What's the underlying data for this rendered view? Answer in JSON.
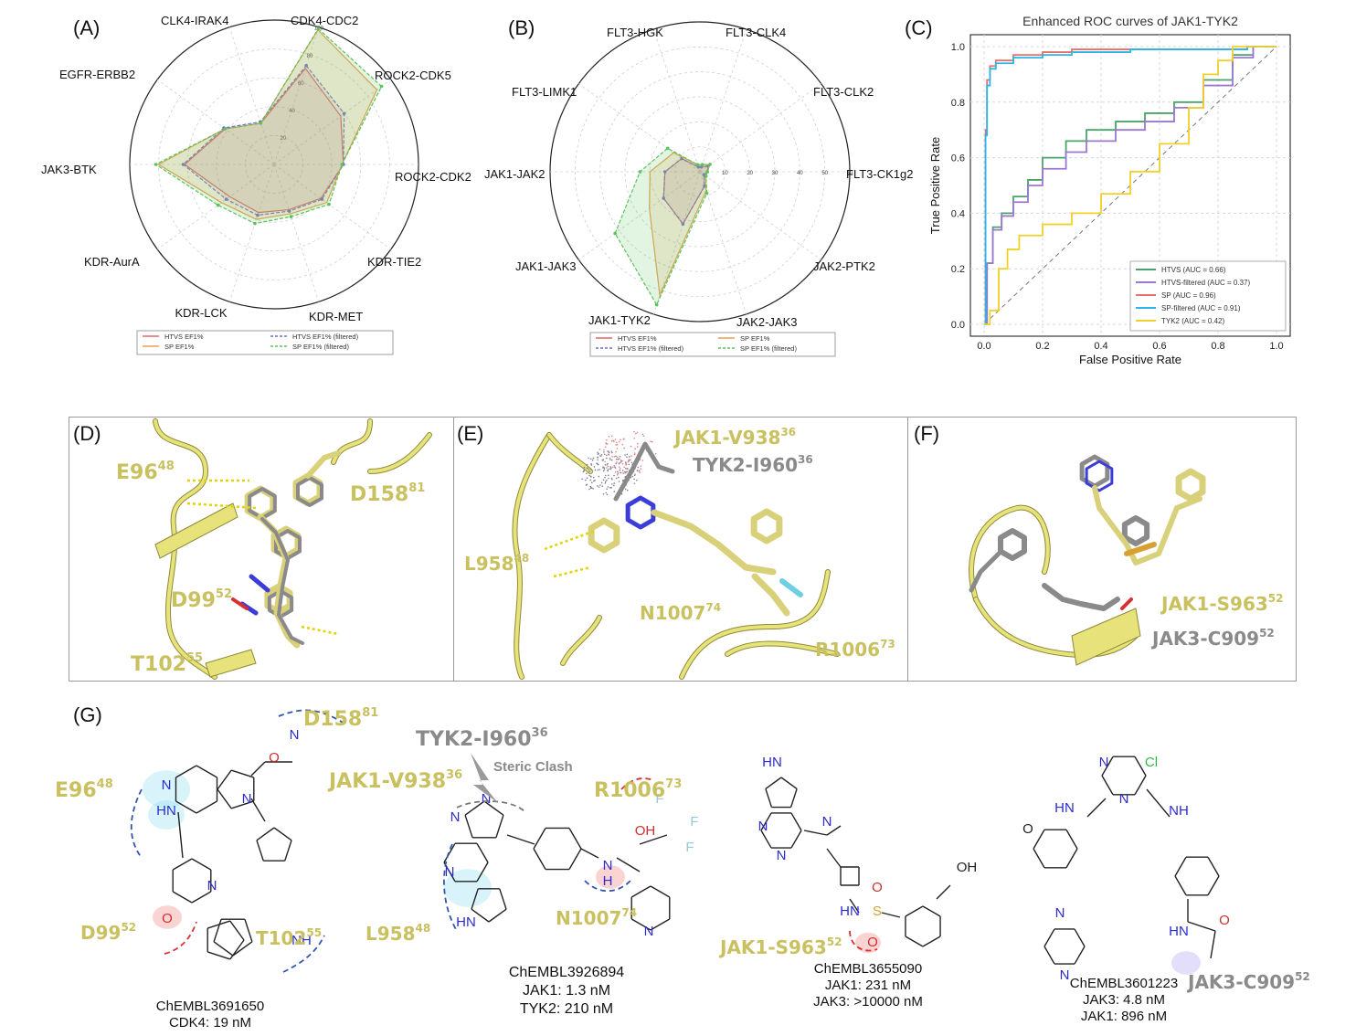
{
  "panels": {
    "a": "(A)",
    "b": "(B)",
    "c": "(C)",
    "d": "(D)",
    "e": "(E)",
    "f": "(F)",
    "g": "(G)"
  },
  "chart_data": [
    {
      "id": "radar-a",
      "type": "radar",
      "axes": [
        "CDK4-CDC2",
        "ROCK2-CDK5",
        "ROCK2-CDK2",
        "KDR-TIE2",
        "KDR-MET",
        "KDR-LCK",
        "KDR-AurA",
        "JAK3-BTK",
        "EGFR-ERBB2",
        "CLK4-IRAK4"
      ],
      "ticks": [
        "20",
        "40",
        "60",
        "80",
        "100"
      ],
      "rmax": 100,
      "series": [
        {
          "name": "HTVS EF1%",
          "color": "#e06666",
          "values": [
            70,
            57,
            48,
            40,
            33,
            35,
            38,
            62,
            42,
            30
          ]
        },
        {
          "name": "HTVS EF1% (filtered)",
          "color": "#6d6dd3",
          "values": [
            72,
            60,
            48,
            41,
            34,
            37,
            41,
            63,
            43,
            31
          ]
        },
        {
          "name": "SP EF1%",
          "color": "#e8a050",
          "values": [
            98,
            88,
            47,
            45,
            36,
            40,
            45,
            80,
            42,
            30
          ]
        },
        {
          "name": "SP EF1% (filtered)",
          "color": "#5cc25c",
          "values": [
            99,
            92,
            47,
            47,
            38,
            43,
            48,
            82,
            42,
            30
          ]
        }
      ],
      "legend": [
        "HTVS EF1%",
        "HTVS EF1% (filtered)",
        "SP EF1%",
        "SP EF1% (filtered)"
      ]
    },
    {
      "id": "radar-b",
      "type": "radar",
      "axes": [
        "FLT3-CK1g2",
        "FLT3-CLK2",
        "FLT3-CLK4",
        "FLT3-HGK",
        "FLT3-LIMK1",
        "JAK1-JAK2",
        "JAK1-JAK3",
        "JAK1-TYK2",
        "JAK2-JAK3",
        "JAK2-PTK2"
      ],
      "ticks": [
        "10",
        "20",
        "30",
        "40",
        "50",
        "60"
      ],
      "rmax": 60,
      "series": [
        {
          "name": "HTVS EF1%",
          "color": "#e06666",
          "values": [
            3,
            4,
            2,
            2,
            9,
            14,
            18,
            22,
            6,
            2
          ]
        },
        {
          "name": "HTVS EF1% (filtered)",
          "color": "#6d6dd3",
          "values": [
            3,
            4,
            2,
            2,
            9,
            14,
            18,
            22,
            6,
            2
          ]
        },
        {
          "name": "SP EF1%",
          "color": "#e8a050",
          "values": [
            3,
            5,
            3,
            3,
            13,
            20,
            25,
            52,
            8,
            3
          ]
        },
        {
          "name": "SP EF1% (filtered)",
          "color": "#5cc25c",
          "values": [
            3,
            5,
            3,
            3,
            16,
            24,
            42,
            56,
            9,
            3
          ]
        }
      ],
      "legend": [
        "HTVS EF1%",
        "SP EF1%",
        "HTVS EF1% (filtered)",
        "SP EF1% (filtered)"
      ]
    },
    {
      "id": "roc-c",
      "type": "line",
      "title": "Enhanced ROC curves of JAK1-TYK2",
      "xlabel": "False Positive Rate",
      "ylabel": "True Positive Rate",
      "xlim": [
        0,
        1
      ],
      "ylim": [
        0,
        1
      ],
      "xticks": [
        "0.0",
        "0.2",
        "0.4",
        "0.6",
        "0.8",
        "1.0"
      ],
      "yticks": [
        "0.0",
        "0.2",
        "0.4",
        "0.6",
        "0.8",
        "1.0"
      ],
      "series": [
        {
          "name": "HTVS (AUC = 0.66)",
          "color": "#4aa36a",
          "x": [
            0,
            0.01,
            0.03,
            0.06,
            0.1,
            0.15,
            0.2,
            0.28,
            0.35,
            0.45,
            0.55,
            0.65,
            0.75,
            0.85,
            0.92,
            1
          ],
          "y": [
            0,
            0.22,
            0.35,
            0.4,
            0.46,
            0.52,
            0.6,
            0.66,
            0.7,
            0.73,
            0.76,
            0.8,
            0.88,
            0.97,
            1,
            1
          ]
        },
        {
          "name": "HTVS-filtered (AUC = 0.37)",
          "color": "#9b78d0",
          "x": [
            0,
            0.01,
            0.03,
            0.06,
            0.1,
            0.15,
            0.2,
            0.28,
            0.35,
            0.45,
            0.55,
            0.65,
            0.75,
            0.85,
            0.92,
            1
          ],
          "y": [
            0,
            0.22,
            0.34,
            0.39,
            0.44,
            0.5,
            0.56,
            0.62,
            0.66,
            0.7,
            0.73,
            0.78,
            0.86,
            0.96,
            1,
            1
          ]
        },
        {
          "name": "SP (AUC = 0.96)",
          "color": "#e8706a",
          "x": [
            0,
            0.005,
            0.01,
            0.02,
            0.04,
            0.1,
            0.2,
            0.3,
            0.5,
            0.7,
            0.9,
            0.96,
            1
          ],
          "y": [
            0,
            0.7,
            0.88,
            0.93,
            0.95,
            0.97,
            0.98,
            0.99,
            0.99,
            0.99,
            1,
            1,
            1
          ]
        },
        {
          "name": "SP-filtered (AUC = 0.91)",
          "color": "#29b6e8",
          "x": [
            0,
            0.005,
            0.01,
            0.02,
            0.04,
            0.1,
            0.2,
            0.3,
            0.5,
            0.7,
            0.9,
            0.96,
            1
          ],
          "y": [
            0,
            0.68,
            0.86,
            0.92,
            0.94,
            0.96,
            0.97,
            0.98,
            0.99,
            0.99,
            1,
            1,
            1
          ]
        },
        {
          "name": "TYK2 (AUC = 0.42)",
          "color": "#f2d02a",
          "x": [
            0,
            0.02,
            0.05,
            0.08,
            0.12,
            0.2,
            0.3,
            0.4,
            0.5,
            0.6,
            0.7,
            0.75,
            0.8,
            0.85,
            1
          ],
          "y": [
            0,
            0.05,
            0.2,
            0.27,
            0.32,
            0.36,
            0.4,
            0.47,
            0.55,
            0.65,
            0.78,
            0.9,
            0.95,
            1,
            1
          ]
        }
      ],
      "diagonal": true,
      "grid": true,
      "legend_position": "lower-right"
    }
  ],
  "structure_panels": {
    "d": {
      "labels": [
        {
          "text": "E96",
          "sup": "48"
        },
        {
          "text": "D158",
          "sup": "81"
        },
        {
          "text": "D99",
          "sup": "52"
        },
        {
          "text": "T102",
          "sup": "55"
        }
      ]
    },
    "e": {
      "labels": [
        {
          "text": "JAK1-V938",
          "sup": "36"
        },
        {
          "text": "TYK2-I960",
          "sup": "36"
        },
        {
          "text": "L958",
          "sup": "48"
        },
        {
          "text": "N1007",
          "sup": "74"
        },
        {
          "text": "R1006",
          "sup": "73"
        }
      ]
    },
    "f": {
      "labels": [
        {
          "text": "JAK1-S963",
          "sup": "52"
        },
        {
          "text": "JAK3-C909",
          "sup": "52"
        }
      ]
    }
  },
  "compounds": [
    {
      "id": "ChEMBL3691650",
      "lines": [
        "CDK4: 19 nM"
      ],
      "labels": [
        {
          "text": "D158",
          "sup": "81"
        },
        {
          "text": "E96",
          "sup": "48"
        },
        {
          "text": "D99",
          "sup": "52"
        },
        {
          "text": "T102",
          "sup": "55"
        }
      ]
    },
    {
      "id": "ChEMBL3926894",
      "lines": [
        "JAK1: 1.3 nM",
        "TYK2: 210 nM"
      ],
      "labels": [
        {
          "text": "TYK2-I960",
          "sup": "36"
        },
        {
          "text": "JAK1-V938",
          "sup": "36"
        },
        {
          "text": "R1006",
          "sup": "73"
        },
        {
          "text": "L958",
          "sup": "48"
        },
        {
          "text": "N1007",
          "sup": "74"
        }
      ],
      "note": "Steric Clash"
    },
    {
      "id": "ChEMBL3655090",
      "lines": [
        "JAK1: 231 nM",
        "JAK3: >10000 nM"
      ],
      "labels": [
        {
          "text": "JAK1-S963",
          "sup": "52"
        }
      ]
    },
    {
      "id": "ChEMBL3601223",
      "lines": [
        "JAK3: 4.8 nM",
        "JAK1: 896 nM"
      ],
      "labels": [
        {
          "text": "JAK3-C909",
          "sup": "52"
        }
      ]
    }
  ],
  "atoms": {
    "hn": "HN",
    "nh": "NH",
    "n": "N",
    "o": "O",
    "oh": "OH",
    "cl": "Cl",
    "f": "F",
    "s": "S",
    "h": "H"
  }
}
